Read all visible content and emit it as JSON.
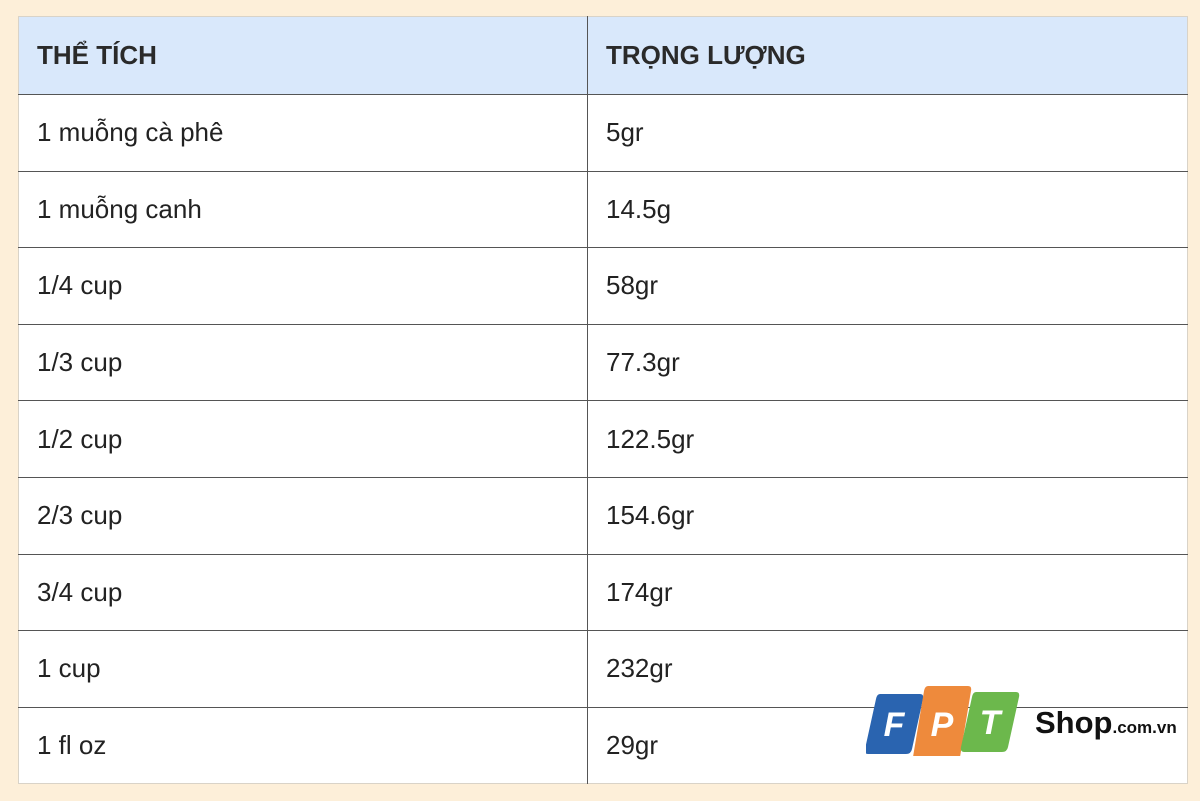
{
  "table": {
    "headers": [
      "THỂ TÍCH",
      "TRỌNG LƯỢNG"
    ],
    "rows": [
      [
        "1 muỗng cà phê",
        "5gr"
      ],
      [
        "1 muỗng canh",
        "14.5g"
      ],
      [
        "1/4 cup",
        "58gr"
      ],
      [
        "1/3 cup",
        "77.3gr"
      ],
      [
        "1/2 cup",
        "122.5gr"
      ],
      [
        "2/3 cup",
        "154.6gr"
      ],
      [
        "3/4 cup",
        "174gr"
      ],
      [
        "1 cup",
        "232gr"
      ],
      [
        "1 fl oz",
        "29gr"
      ]
    ]
  },
  "logo": {
    "letters": [
      "F",
      "P",
      "T"
    ],
    "shop": "Shop",
    "domain": ".com.vn",
    "colors": [
      "#2a64b0",
      "#ee8a3c",
      "#6cb84c"
    ]
  }
}
